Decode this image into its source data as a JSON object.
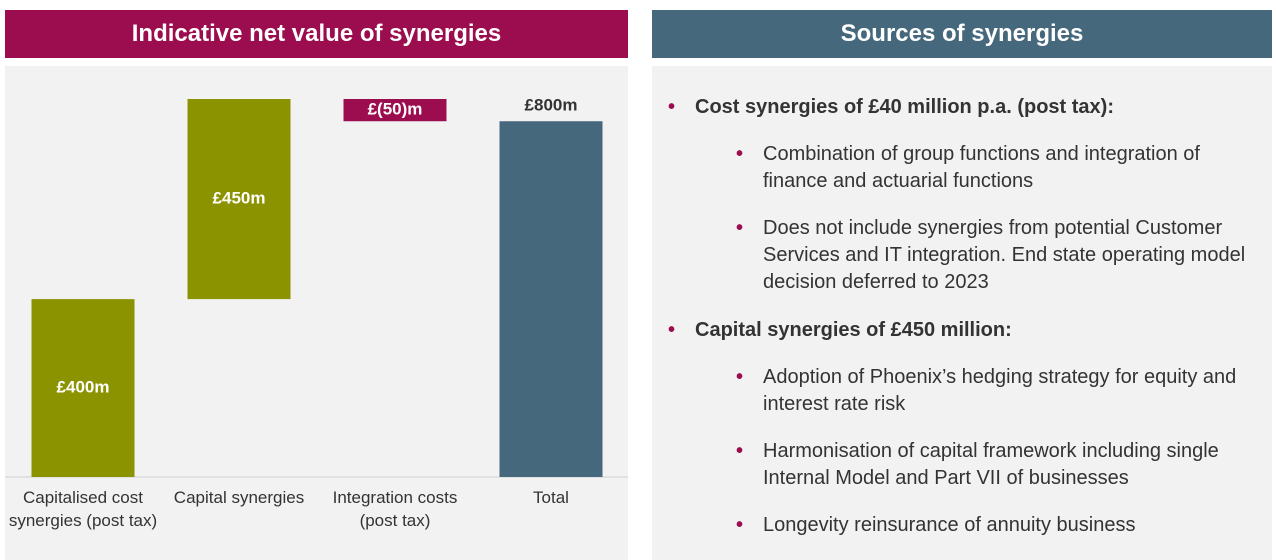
{
  "left_title": "Indicative net value of synergies",
  "right_title": "Sources of synergies",
  "chart_data": {
    "type": "waterfall",
    "categories": [
      "Capitalised cost synergies (post tax)",
      "Capital synergies",
      "Integration costs (post tax)",
      "Total"
    ],
    "values": [
      400,
      450,
      -50,
      800
    ],
    "value_labels": [
      "£400m",
      "£450m",
      "£(50)m",
      "£800m"
    ],
    "colors": [
      "#8c9300",
      "#8c9300",
      "#9b0d4e",
      "#46687c"
    ]
  },
  "bullets": [
    {
      "text": "Cost synergies of £40 million p.a. (post tax):",
      "items": [
        "Combination of group functions and integration of finance and actuarial functions",
        "Does not include synergies from potential Customer Services and IT integration. End state operating model decision deferred to 2023"
      ]
    },
    {
      "text": "Capital synergies of £450 million:",
      "items": [
        "Adoption of Phoenix’s hedging strategy for equity and interest rate risk",
        "Harmonisation of capital framework including single Internal Model and Part VII of businesses",
        "Longevity reinsurance of annuity business"
      ]
    }
  ]
}
